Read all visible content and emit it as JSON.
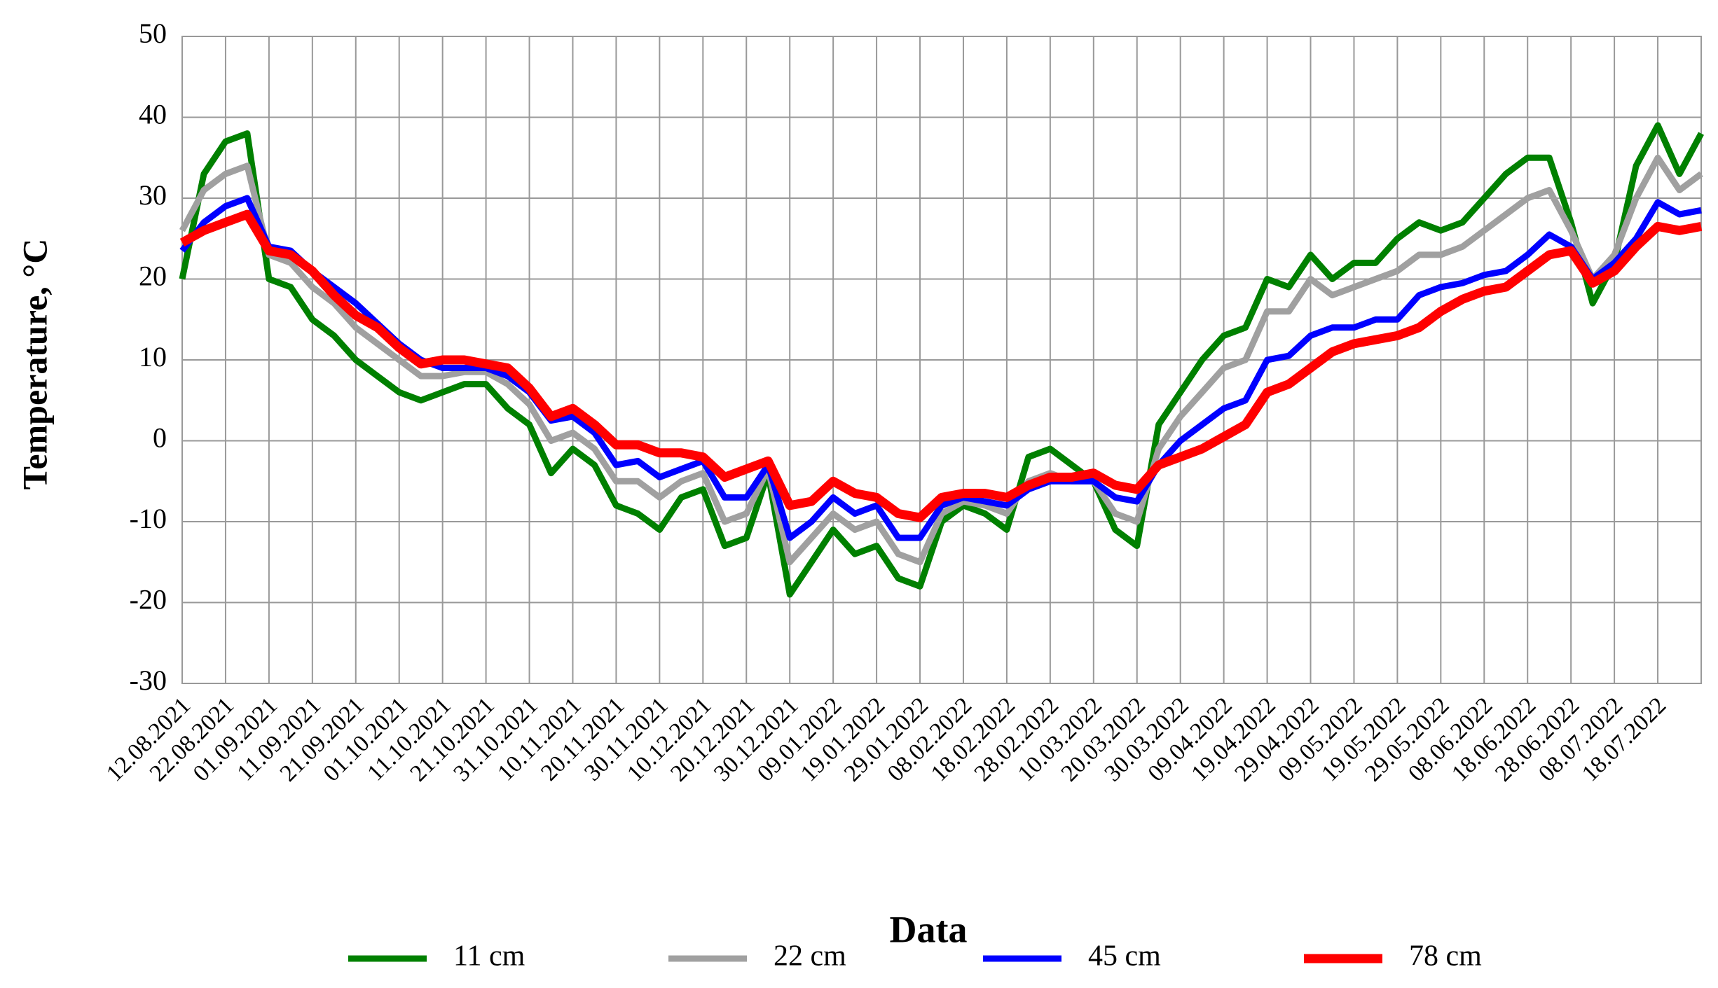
{
  "chart_data": {
    "type": "line",
    "ylabel": "Temperature, °C",
    "xlabel": "Data",
    "x": [
      "12.08.2021",
      "17.08.2021",
      "22.08.2021",
      "27.08.2021",
      "01.09.2021",
      "06.09.2021",
      "11.09.2021",
      "16.09.2021",
      "21.09.2021",
      "26.09.2021",
      "01.10.2021",
      "06.10.2021",
      "11.10.2021",
      "16.10.2021",
      "21.10.2021",
      "26.10.2021",
      "31.10.2021",
      "05.11.2021",
      "10.11.2021",
      "15.11.2021",
      "20.11.2021",
      "25.11.2021",
      "30.11.2021",
      "05.12.2021",
      "10.12.2021",
      "15.12.2021",
      "20.12.2021",
      "25.12.2021",
      "30.12.2021",
      "04.01.2022",
      "09.01.2022",
      "14.01.2022",
      "19.01.2022",
      "24.01.2022",
      "29.01.2022",
      "03.02.2022",
      "08.02.2022",
      "13.02.2022",
      "18.02.2022",
      "23.02.2022",
      "28.02.2022",
      "05.03.2022",
      "10.03.2022",
      "15.03.2022",
      "20.03.2022",
      "25.03.2022",
      "30.03.2022",
      "04.04.2022",
      "09.04.2022",
      "14.04.2022",
      "19.04.2022",
      "24.04.2022",
      "29.04.2022",
      "04.05.2022",
      "09.05.2022",
      "14.05.2022",
      "19.05.2022",
      "24.05.2022",
      "29.05.2022",
      "03.06.2022",
      "08.06.2022",
      "13.06.2022",
      "18.06.2022",
      "23.06.2022",
      "28.06.2022",
      "03.07.2022",
      "08.07.2022",
      "13.07.2022",
      "18.07.2022",
      "23.07.2022",
      "28.07.2022"
    ],
    "series": [
      {
        "name": "11 cm",
        "color": "#008000",
        "values": [
          20,
          33,
          37,
          38,
          20,
          19,
          15,
          13,
          10,
          8,
          6,
          5,
          6,
          7,
          7,
          4,
          2,
          -4,
          -1,
          -3,
          -8,
          -9,
          -11,
          -7,
          -6,
          -13,
          -12,
          -4,
          -19,
          -15,
          -11,
          -14,
          -13,
          -17,
          -18,
          -10,
          -8,
          -9,
          -11,
          -2,
          -1,
          -3,
          -5,
          -11,
          -13,
          2,
          6,
          10,
          13,
          14,
          20,
          19,
          23,
          20,
          22,
          22,
          25,
          27,
          26,
          27,
          30,
          33,
          35,
          35,
          27,
          17,
          22,
          34,
          39,
          33,
          38
        ]
      },
      {
        "name": "22 cm",
        "color": "#a0a0a0",
        "values": [
          26,
          31,
          33,
          34,
          23,
          22,
          19,
          17,
          14,
          12,
          10,
          8,
          8,
          8.5,
          8.5,
          7,
          4.5,
          0,
          1,
          -1,
          -5,
          -5,
          -7,
          -5,
          -4,
          -10,
          -9,
          -3.5,
          -15,
          -12,
          -9,
          -11,
          -10,
          -14,
          -15,
          -9,
          -7.5,
          -8,
          -9,
          -5,
          -4,
          -5,
          -5,
          -9,
          -10,
          -1,
          3,
          6,
          9,
          10,
          16,
          16,
          20,
          18,
          19,
          20,
          21,
          23,
          23,
          24,
          26,
          28,
          30,
          31,
          26,
          20,
          23,
          30,
          35,
          31,
          33
        ]
      },
      {
        "name": "45 cm",
        "color": "#0000ff",
        "values": [
          23.5,
          27,
          29,
          30,
          24,
          23.5,
          21,
          19,
          17,
          14.5,
          12,
          10,
          9,
          9,
          9,
          8,
          6,
          2.5,
          3,
          1,
          -3,
          -2.5,
          -4.5,
          -3.5,
          -2.5,
          -7,
          -7,
          -3,
          -12,
          -10,
          -7,
          -9,
          -8,
          -12,
          -12,
          -8,
          -7,
          -7.5,
          -8,
          -6,
          -5,
          -5,
          -5,
          -7,
          -7.5,
          -3,
          0,
          2,
          4,
          5,
          10,
          10.5,
          13,
          14,
          14,
          15,
          15,
          18,
          19,
          19.5,
          20.5,
          21,
          23,
          25.5,
          24,
          20,
          22,
          25,
          29.5,
          28,
          28.5
        ]
      },
      {
        "name": "78 cm",
        "color": "#ff0000",
        "values": [
          24.5,
          26,
          27,
          28,
          23.5,
          23,
          21,
          18,
          15.5,
          14,
          11.5,
          9.5,
          10,
          10,
          9.5,
          9,
          6.5,
          3,
          4,
          2,
          -0.5,
          -0.5,
          -1.5,
          -1.5,
          -2,
          -4.5,
          -3.5,
          -2.5,
          -8,
          -7.5,
          -5,
          -6.5,
          -7,
          -9,
          -9.5,
          -7,
          -6.5,
          -6.5,
          -7,
          -5.5,
          -4.5,
          -4.5,
          -4,
          -5.5,
          -6,
          -3,
          -2,
          -1,
          0.5,
          2,
          6,
          7,
          9,
          11,
          12,
          12.5,
          13,
          14,
          16,
          17.5,
          18.5,
          19,
          21,
          23,
          23.5,
          19.5,
          21,
          24,
          26.5,
          26,
          26.5
        ]
      }
    ],
    "xlim": [
      "12.08.2021",
      "28.07.2022"
    ],
    "xticks": [
      "12.08.2021",
      "22.08.2021",
      "01.09.2021",
      "11.09.2021",
      "21.09.2021",
      "01.10.2021",
      "11.10.2021",
      "21.10.2021",
      "31.10.2021",
      "10.11.2021",
      "20.11.2021",
      "30.11.2021",
      "10.12.2021",
      "20.12.2021",
      "30.12.2021",
      "09.01.2022",
      "19.01.2022",
      "29.01.2022",
      "08.02.2022",
      "18.02.2022",
      "28.02.2022",
      "10.03.2022",
      "20.03.2022",
      "30.03.2022",
      "09.04.2022",
      "19.04.2022",
      "29.04.2022",
      "09.05.2022",
      "19.05.2022",
      "29.05.2022",
      "08.06.2022",
      "18.06.2022",
      "28.06.2022",
      "08.07.2022",
      "18.07.2022"
    ],
    "ylim": [
      -30,
      50
    ],
    "yticks": [
      -30,
      -20,
      -10,
      0,
      10,
      20,
      30,
      40,
      50
    ],
    "grid": true
  }
}
